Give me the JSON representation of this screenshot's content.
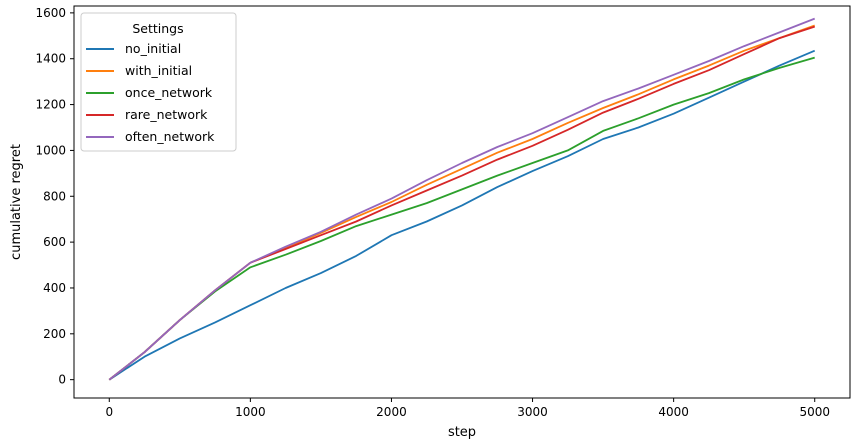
{
  "chart_data": {
    "type": "line",
    "xlabel": "step",
    "ylabel": "cumulative regret",
    "xlim": [
      -250,
      5250
    ],
    "ylim": [
      -80,
      1630
    ],
    "xticks": [
      0,
      1000,
      2000,
      3000,
      4000,
      5000
    ],
    "yticks": [
      0,
      200,
      400,
      600,
      800,
      1000,
      1200,
      1400,
      1600
    ],
    "grid": false,
    "legend": {
      "title": "Settings",
      "placement": "top-left"
    },
    "series": [
      {
        "name": "no_initial",
        "color": "#1f77b4",
        "x": [
          0,
          250,
          500,
          750,
          1000,
          1250,
          1500,
          1750,
          2000,
          2250,
          2500,
          2750,
          3000,
          3250,
          3500,
          3750,
          4000,
          4250,
          4500,
          4750,
          5000
        ],
        "y": [
          0,
          100,
          180,
          250,
          325,
          400,
          465,
          540,
          630,
          690,
          760,
          840,
          910,
          975,
          1050,
          1100,
          1160,
          1230,
          1300,
          1370,
          1435
        ]
      },
      {
        "name": "with_initial",
        "color": "#ff7f0e",
        "x": [
          0,
          250,
          500,
          750,
          1000,
          1250,
          1500,
          1750,
          2000,
          2250,
          2500,
          2750,
          3000,
          3250,
          3500,
          3750,
          4000,
          4250,
          4500,
          4750,
          5000
        ],
        "y": [
          0,
          120,
          260,
          390,
          510,
          575,
          640,
          710,
          775,
          850,
          920,
          990,
          1050,
          1120,
          1185,
          1245,
          1310,
          1370,
          1435,
          1490,
          1545
        ]
      },
      {
        "name": "once_network",
        "color": "#2ca02c",
        "x": [
          0,
          250,
          500,
          750,
          1000,
          1250,
          1500,
          1750,
          2000,
          2250,
          2500,
          2750,
          3000,
          3250,
          3500,
          3750,
          4000,
          4250,
          4500,
          4750,
          5000
        ],
        "y": [
          0,
          120,
          260,
          385,
          490,
          545,
          605,
          670,
          720,
          770,
          830,
          890,
          945,
          1000,
          1085,
          1140,
          1200,
          1250,
          1310,
          1360,
          1405
        ]
      },
      {
        "name": "rare_network",
        "color": "#d62728",
        "x": [
          0,
          250,
          500,
          750,
          1000,
          1250,
          1500,
          1750,
          2000,
          2250,
          2500,
          2750,
          3000,
          3250,
          3500,
          3750,
          4000,
          4250,
          4500,
          4750,
          5000
        ],
        "y": [
          0,
          120,
          260,
          390,
          510,
          570,
          630,
          690,
          760,
          825,
          890,
          960,
          1020,
          1090,
          1165,
          1225,
          1290,
          1350,
          1420,
          1490,
          1540
        ]
      },
      {
        "name": "often_network",
        "color": "#9467bd",
        "x": [
          0,
          250,
          500,
          750,
          1000,
          1250,
          1500,
          1750,
          2000,
          2250,
          2500,
          2750,
          3000,
          3250,
          3500,
          3750,
          4000,
          4250,
          4500,
          4750,
          5000
        ],
        "y": [
          0,
          120,
          260,
          390,
          510,
          580,
          645,
          720,
          790,
          870,
          945,
          1015,
          1075,
          1145,
          1215,
          1270,
          1330,
          1390,
          1455,
          1515,
          1575
        ]
      }
    ]
  }
}
